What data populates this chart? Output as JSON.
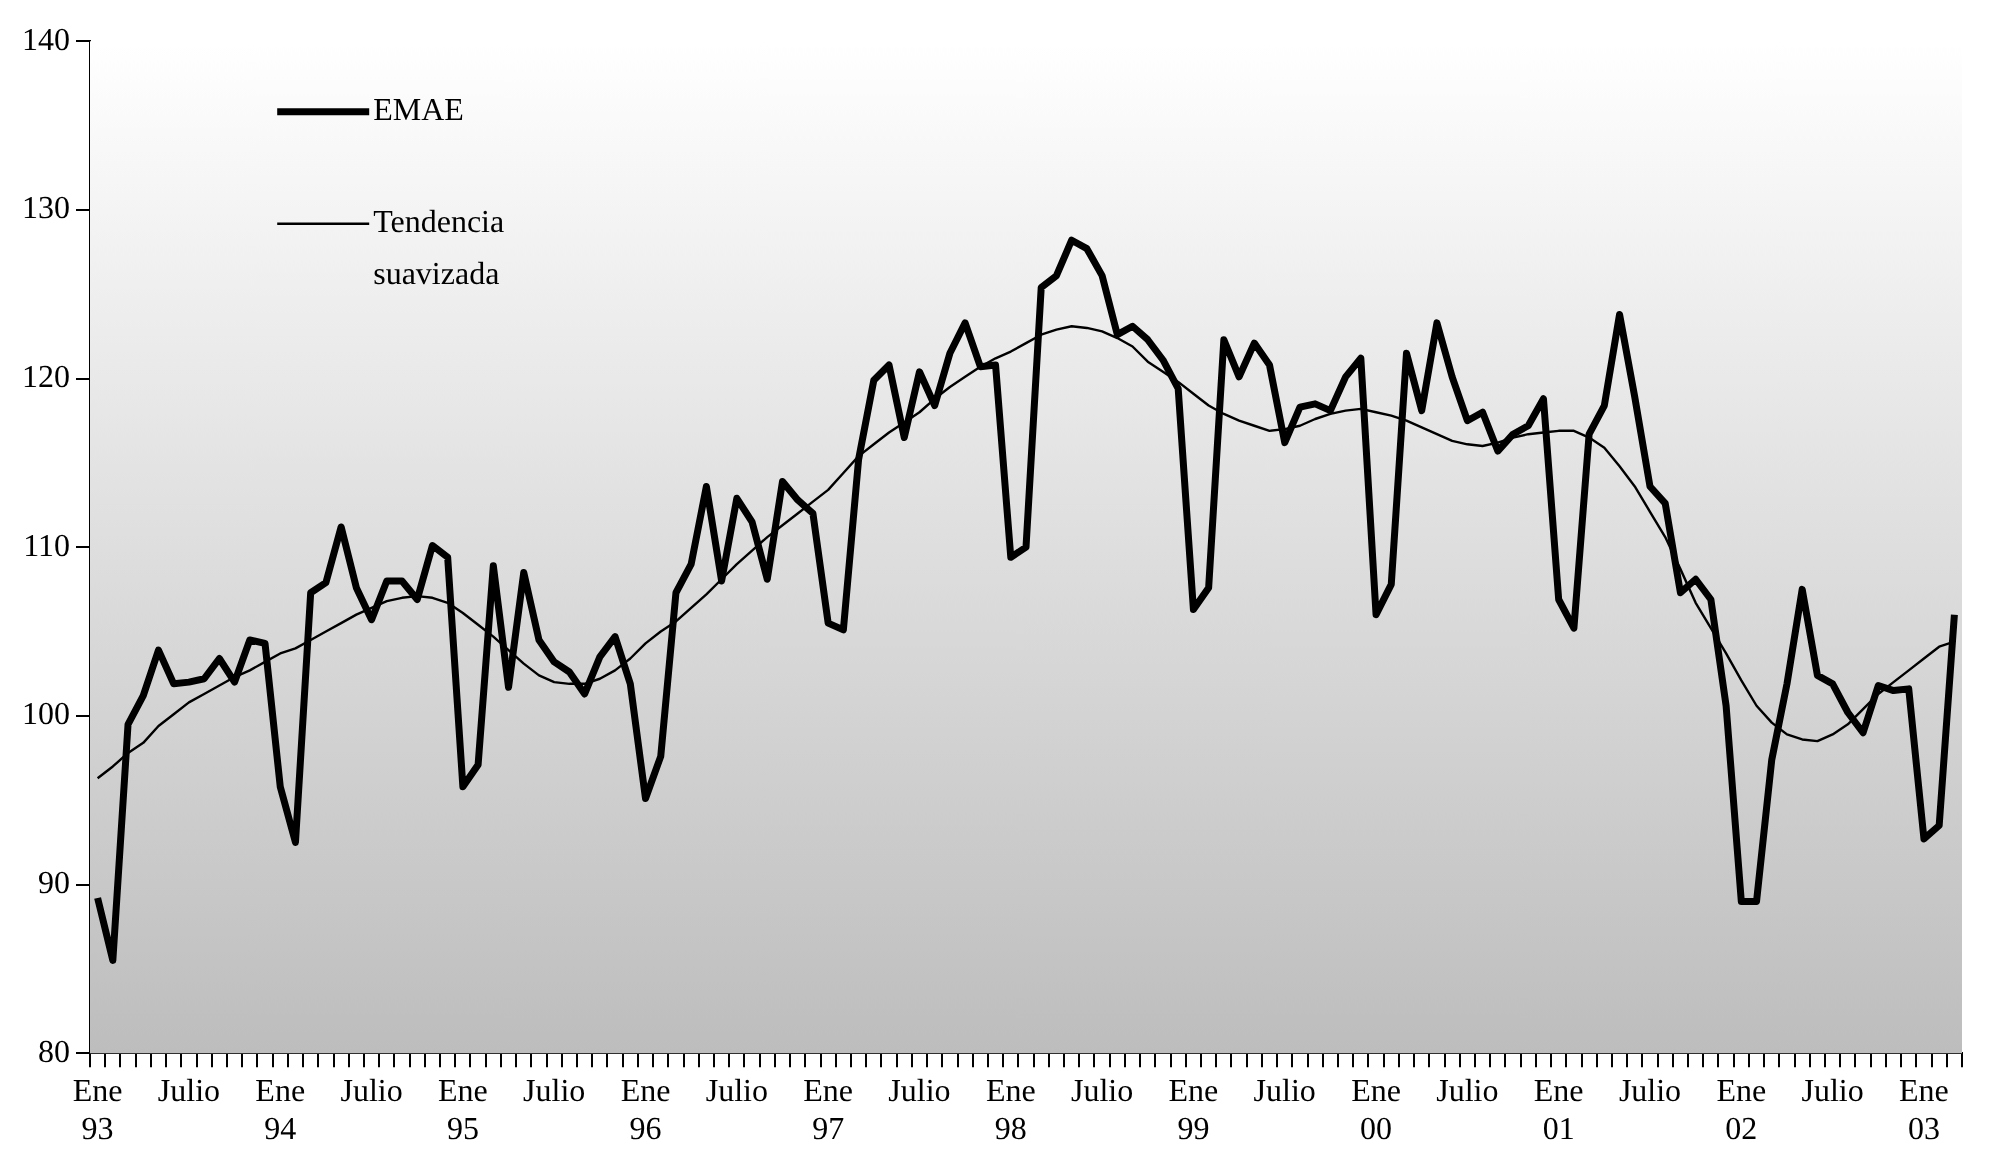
{
  "chart_data": {
    "type": "line",
    "categories": [
      "Ene 93",
      null,
      null,
      null,
      null,
      null,
      "Julio",
      null,
      null,
      null,
      null,
      null,
      "Ene 94",
      null,
      null,
      null,
      null,
      null,
      "Julio",
      null,
      null,
      null,
      null,
      null,
      "Ene 95",
      null,
      null,
      null,
      null,
      null,
      "Julio",
      null,
      null,
      null,
      null,
      null,
      "Ene 96",
      null,
      null,
      null,
      null,
      null,
      "Julio",
      null,
      null,
      null,
      null,
      null,
      "Ene 97",
      null,
      null,
      null,
      null,
      null,
      "Julio",
      null,
      null,
      null,
      null,
      null,
      "Ene 98",
      null,
      null,
      null,
      null,
      null,
      "Julio",
      null,
      null,
      null,
      null,
      null,
      "Ene 99",
      null,
      null,
      null,
      null,
      null,
      "Julio",
      null,
      null,
      null,
      null,
      null,
      "Ene 00",
      null,
      null,
      null,
      null,
      null,
      "Julio",
      null,
      null,
      null,
      null,
      null,
      "Ene 01",
      null,
      null,
      null,
      null,
      null,
      "Julio",
      null,
      null,
      null,
      null,
      null,
      "Ene 02",
      null,
      null,
      null,
      null,
      null,
      "Julio",
      null,
      null,
      null,
      null,
      null,
      "Ene 03",
      null,
      null
    ],
    "series": [
      {
        "name": "EMAE",
        "color": "#000000",
        "values": [
          89.2,
          85.5,
          99.5,
          101.2,
          103.9,
          101.9,
          102.0,
          102.2,
          103.4,
          102.0,
          104.5,
          104.3,
          95.8,
          92.5,
          107.3,
          107.9,
          111.2,
          107.6,
          105.7,
          108.0,
          108.0,
          106.9,
          110.1,
          109.4,
          95.8,
          97.1,
          108.9,
          101.7,
          108.5,
          104.5,
          103.2,
          102.6,
          101.3,
          103.5,
          104.7,
          101.9,
          95.1,
          97.6,
          107.3,
          109.0,
          113.6,
          108.0,
          112.9,
          111.5,
          108.1,
          113.9,
          112.8,
          112.0,
          105.5,
          105.1,
          115.2,
          119.9,
          120.8,
          116.5,
          120.4,
          118.4,
          121.5,
          123.3,
          120.7,
          120.8,
          109.4,
          110.0,
          125.4,
          126.1,
          128.2,
          127.7,
          126.1,
          122.6,
          123.1,
          122.3,
          121.1,
          119.4,
          106.3,
          107.6,
          122.3,
          120.1,
          122.1,
          120.8,
          116.2,
          118.3,
          118.5,
          118.1,
          120.1,
          121.2,
          106.0,
          107.8,
          121.5,
          118.1,
          123.3,
          120.1,
          117.5,
          118.0,
          115.7,
          116.7,
          117.2,
          118.8,
          106.9,
          105.2,
          116.7,
          118.4,
          123.8,
          118.9,
          113.6,
          112.6,
          107.3,
          108.1,
          106.9,
          100.6,
          89.0,
          89.0,
          97.4,
          101.9,
          107.5,
          102.4,
          101.9,
          100.2,
          99.0,
          101.8,
          101.5,
          101.6,
          92.7,
          93.5,
          106.0
        ]
      },
      {
        "name": "Tendencia suavizada",
        "color": "#000000",
        "values": [
          96.3,
          97.0,
          97.8,
          98.4,
          99.4,
          100.1,
          100.8,
          101.3,
          101.8,
          102.3,
          102.7,
          103.2,
          103.7,
          104.0,
          104.5,
          105.0,
          105.5,
          106.0,
          106.4,
          106.8,
          107.0,
          107.1,
          107.0,
          106.7,
          106.1,
          105.4,
          104.7,
          103.9,
          103.1,
          102.4,
          102.0,
          101.9,
          101.9,
          102.2,
          102.7,
          103.4,
          104.3,
          105.0,
          105.6,
          106.4,
          107.2,
          108.1,
          109.0,
          109.8,
          110.6,
          111.3,
          112.0,
          112.7,
          113.4,
          114.4,
          115.4,
          116.1,
          116.8,
          117.4,
          118.0,
          118.8,
          119.5,
          120.1,
          120.7,
          121.2,
          121.6,
          122.1,
          122.6,
          122.9,
          123.1,
          123.0,
          122.8,
          122.4,
          121.9,
          121.0,
          120.4,
          119.8,
          119.1,
          118.4,
          117.9,
          117.5,
          117.2,
          116.9,
          117.0,
          117.2,
          117.6,
          117.9,
          118.1,
          118.2,
          118.0,
          117.8,
          117.5,
          117.1,
          116.7,
          116.3,
          116.1,
          116.0,
          116.2,
          116.5,
          116.7,
          116.8,
          116.9,
          116.9,
          116.5,
          115.9,
          114.8,
          113.6,
          112.1,
          110.6,
          108.7,
          106.7,
          105.2,
          103.7,
          102.1,
          100.6,
          99.6,
          98.9,
          98.6,
          98.5,
          98.9,
          99.5,
          100.4,
          101.3,
          102.0,
          102.7,
          103.4,
          104.1,
          104.4
        ]
      }
    ],
    "ylim": [
      80,
      140
    ],
    "yticks": [
      80,
      90,
      100,
      110,
      120,
      130,
      140
    ],
    "grid": false,
    "legend": "top left",
    "marker": "none",
    "line_style": "solid"
  }
}
